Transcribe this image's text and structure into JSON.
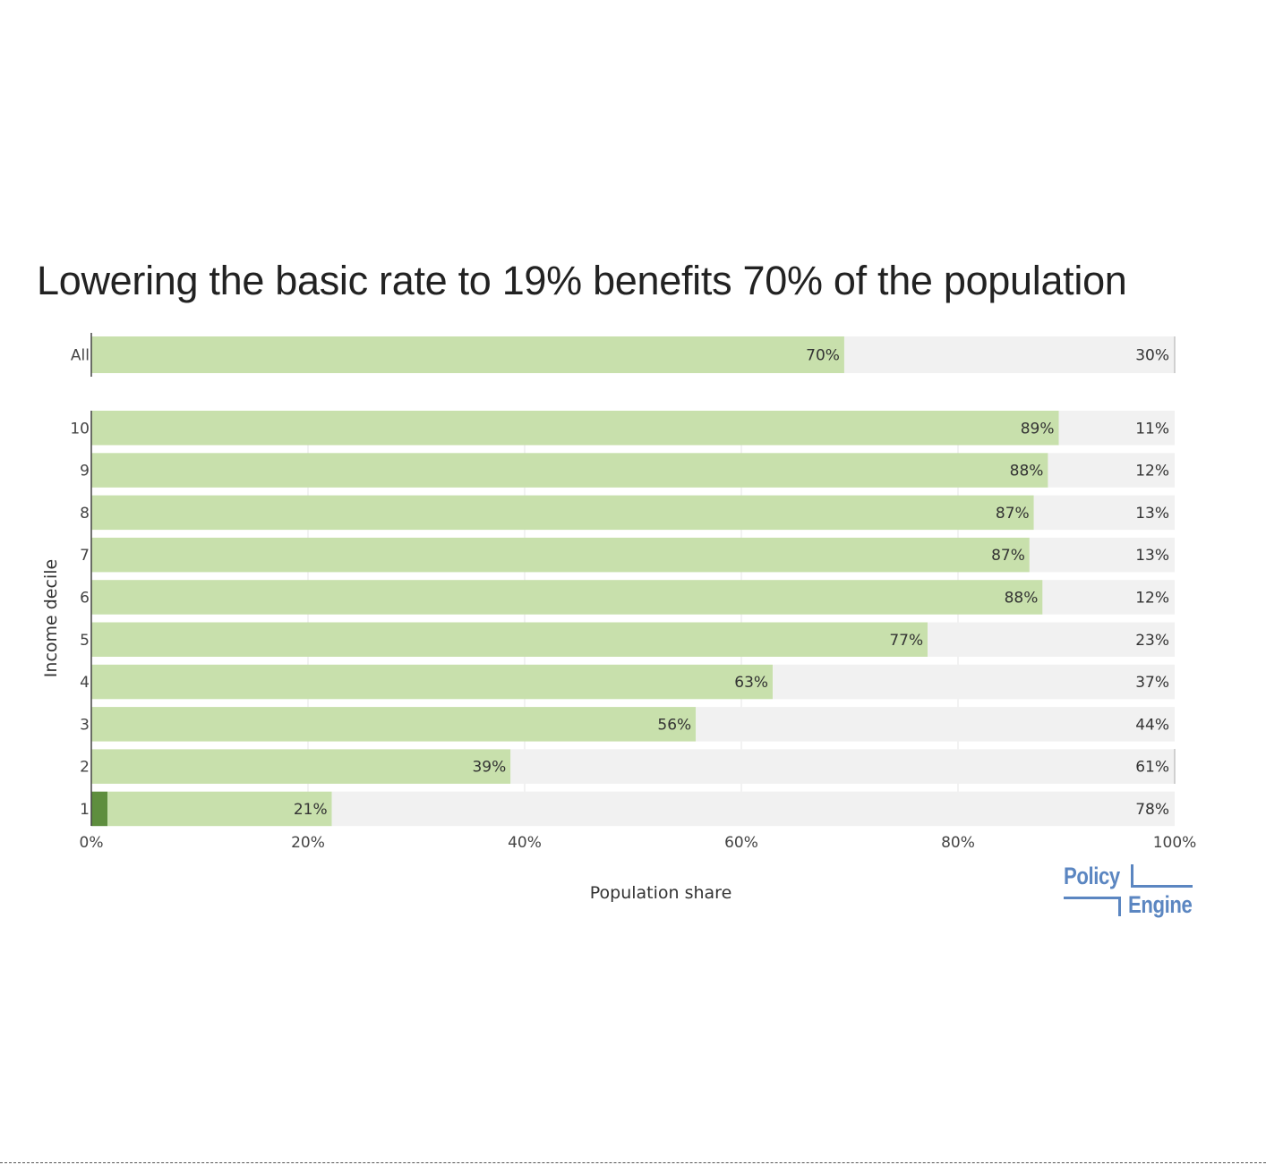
{
  "chart_data": {
    "type": "bar",
    "orientation": "horizontal",
    "stacked": true,
    "title": "Lowering the basic rate to 19% benefits 70% of the population",
    "xlabel": "Population share",
    "ylabel": "Income decile",
    "xlim": [
      0,
      1
    ],
    "x_ticks": [
      "0%",
      "20%",
      "40%",
      "60%",
      "80%",
      "100%"
    ],
    "grid": "vertical",
    "legend": "none",
    "groups": [
      {
        "name": "all",
        "categories": [
          "All"
        ],
        "series": [
          {
            "color": "#c8e0ac",
            "values": [
              0.695
            ],
            "labels": [
              "70%"
            ]
          },
          {
            "color": "#f1f1f1",
            "values": [
              0.305
            ],
            "labels": [
              "30%"
            ]
          }
        ]
      },
      {
        "name": "deciles",
        "categories": [
          "10",
          "9",
          "8",
          "7",
          "6",
          "5",
          "4",
          "3",
          "2",
          "1"
        ],
        "series": [
          {
            "color": "#5e8e3e",
            "values": [
              0,
              0,
              0,
              0,
              0,
              0,
              0,
              0,
              0,
              0.015
            ],
            "labels": [
              "",
              "",
              "",
              "",
              "",
              "",
              "",
              "",
              "",
              ""
            ]
          },
          {
            "color": "#c8e0ac",
            "values": [
              0.893,
              0.883,
              0.87,
              0.866,
              0.878,
              0.772,
              0.629,
              0.558,
              0.387,
              0.207
            ],
            "labels": [
              "89%",
              "88%",
              "87%",
              "87%",
              "88%",
              "77%",
              "63%",
              "56%",
              "39%",
              "21%"
            ]
          },
          {
            "color": "#f1f1f1",
            "values": [
              0.107,
              0.117,
              0.13,
              0.134,
              0.122,
              0.228,
              0.371,
              0.442,
              0.613,
              0.778
            ],
            "labels": [
              "11%",
              "12%",
              "13%",
              "13%",
              "12%",
              "23%",
              "37%",
              "44%",
              "61%",
              "78%"
            ]
          }
        ]
      }
    ]
  },
  "logo": {
    "line1": "Policy",
    "line2": "Engine",
    "color": "#5b86c1"
  }
}
